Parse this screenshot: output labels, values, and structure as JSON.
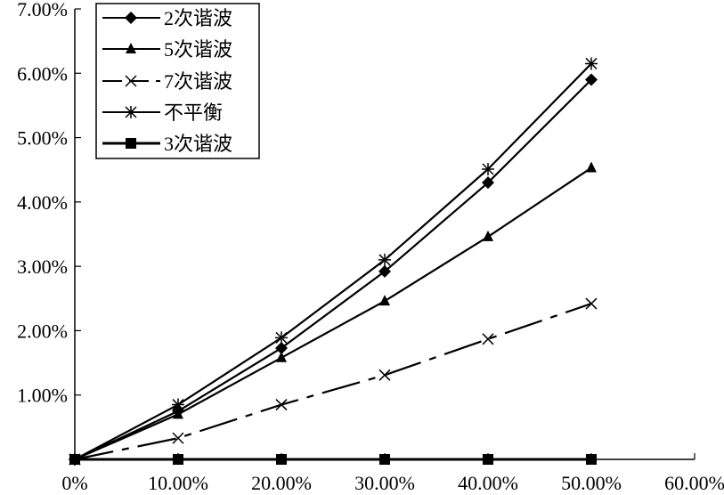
{
  "chart_data": {
    "type": "line",
    "title": "",
    "xlabel": "",
    "ylabel": "",
    "x": [
      0,
      0.1,
      0.2,
      0.3,
      0.4,
      0.5
    ],
    "xlim": [
      0,
      0.6
    ],
    "ylim": [
      0,
      0.07
    ],
    "x_ticks": [
      0,
      0.1,
      0.2,
      0.3,
      0.4,
      0.5,
      0.6
    ],
    "y_ticks": [
      0.01,
      0.02,
      0.03,
      0.04,
      0.05,
      0.06,
      0.07
    ],
    "x_tick_labels": [
      "0%",
      "10.00%",
      "20.00%",
      "30.00%",
      "40.00%",
      "50.00%",
      "60.00%"
    ],
    "y_tick_labels": [
      "1.00%",
      "2.00%",
      "3.00%",
      "4.00%",
      "5.00%",
      "6.00%",
      "7.00%"
    ],
    "grid": false,
    "legend_position": "top-left",
    "series": [
      {
        "name": "2次谐波",
        "marker": "diamond",
        "line": "solid",
        "color": "#000000",
        "values": [
          0,
          0.0075,
          0.0173,
          0.0292,
          0.043,
          0.059
        ]
      },
      {
        "name": "5次谐波",
        "marker": "triangle",
        "line": "solid",
        "color": "#000000",
        "values": [
          0,
          0.007,
          0.0158,
          0.0246,
          0.0346,
          0.0453
        ]
      },
      {
        "name": "7次谐波",
        "marker": "x",
        "line": "dashed",
        "color": "#000000",
        "values": [
          0,
          0.0033,
          0.0085,
          0.0131,
          0.0187,
          0.0242
        ]
      },
      {
        "name": "不平衡",
        "marker": "star",
        "line": "solid",
        "color": "#000000",
        "values": [
          0,
          0.0085,
          0.0189,
          0.031,
          0.0451,
          0.0615
        ]
      },
      {
        "name": "3次谐波",
        "marker": "square",
        "line": "solid",
        "color": "#000000",
        "values": [
          0,
          0,
          0,
          0,
          0,
          0
        ]
      }
    ]
  }
}
